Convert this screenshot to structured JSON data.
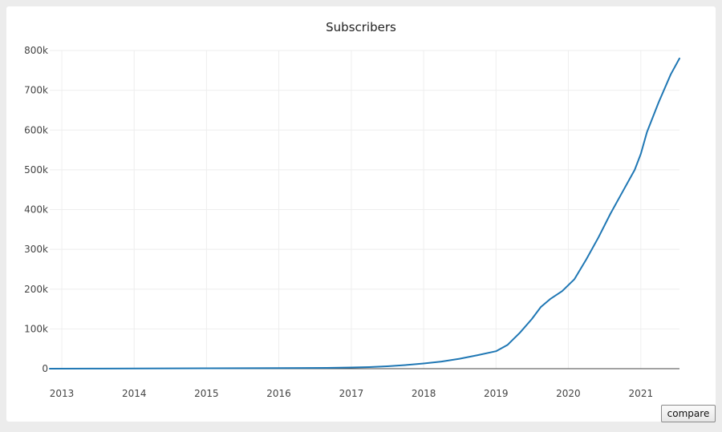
{
  "compare_button": {
    "label": "compare"
  },
  "chart_data": {
    "type": "line",
    "title": "Subscribers",
    "xlabel": "",
    "ylabel": "",
    "x_ticks": [
      "2013",
      "2014",
      "2015",
      "2016",
      "2017",
      "2018",
      "2019",
      "2020",
      "2021"
    ],
    "y_ticks": [
      "0",
      "100k",
      "200k",
      "300k",
      "400k",
      "500k",
      "600k",
      "700k",
      "800k"
    ],
    "xlim": [
      "2012-11-01",
      "2021-07-15"
    ],
    "ylim": [
      0,
      800000
    ],
    "grid": true,
    "line_color": "#1f77b4",
    "series": [
      {
        "x": [
          "2012-11-01",
          "2013-06-01",
          "2014-01-01",
          "2015-01-01",
          "2016-01-01",
          "2016-09-01",
          "2017-01-01",
          "2017-04-01",
          "2017-07-01",
          "2017-10-01",
          "2018-01-01",
          "2018-04-01",
          "2018-07-01",
          "2018-10-01",
          "2019-01-01",
          "2019-03-01",
          "2019-05-01",
          "2019-07-01",
          "2019-08-15",
          "2019-10-01",
          "2019-12-01",
          "2020-02-01",
          "2020-04-01",
          "2020-06-01",
          "2020-08-01",
          "2020-10-01",
          "2020-12-01",
          "2021-01-01",
          "2021-02-01",
          "2021-04-01",
          "2021-06-01",
          "2021-07-15"
        ],
        "values": [
          0,
          200,
          500,
          1000,
          1500,
          2000,
          3000,
          4000,
          6000,
          9000,
          13000,
          18000,
          25000,
          34000,
          44000,
          60000,
          90000,
          125000,
          155000,
          175000,
          195000,
          225000,
          275000,
          330000,
          390000,
          445000,
          500000,
          540000,
          595000,
          670000,
          740000,
          780000
        ]
      }
    ]
  }
}
